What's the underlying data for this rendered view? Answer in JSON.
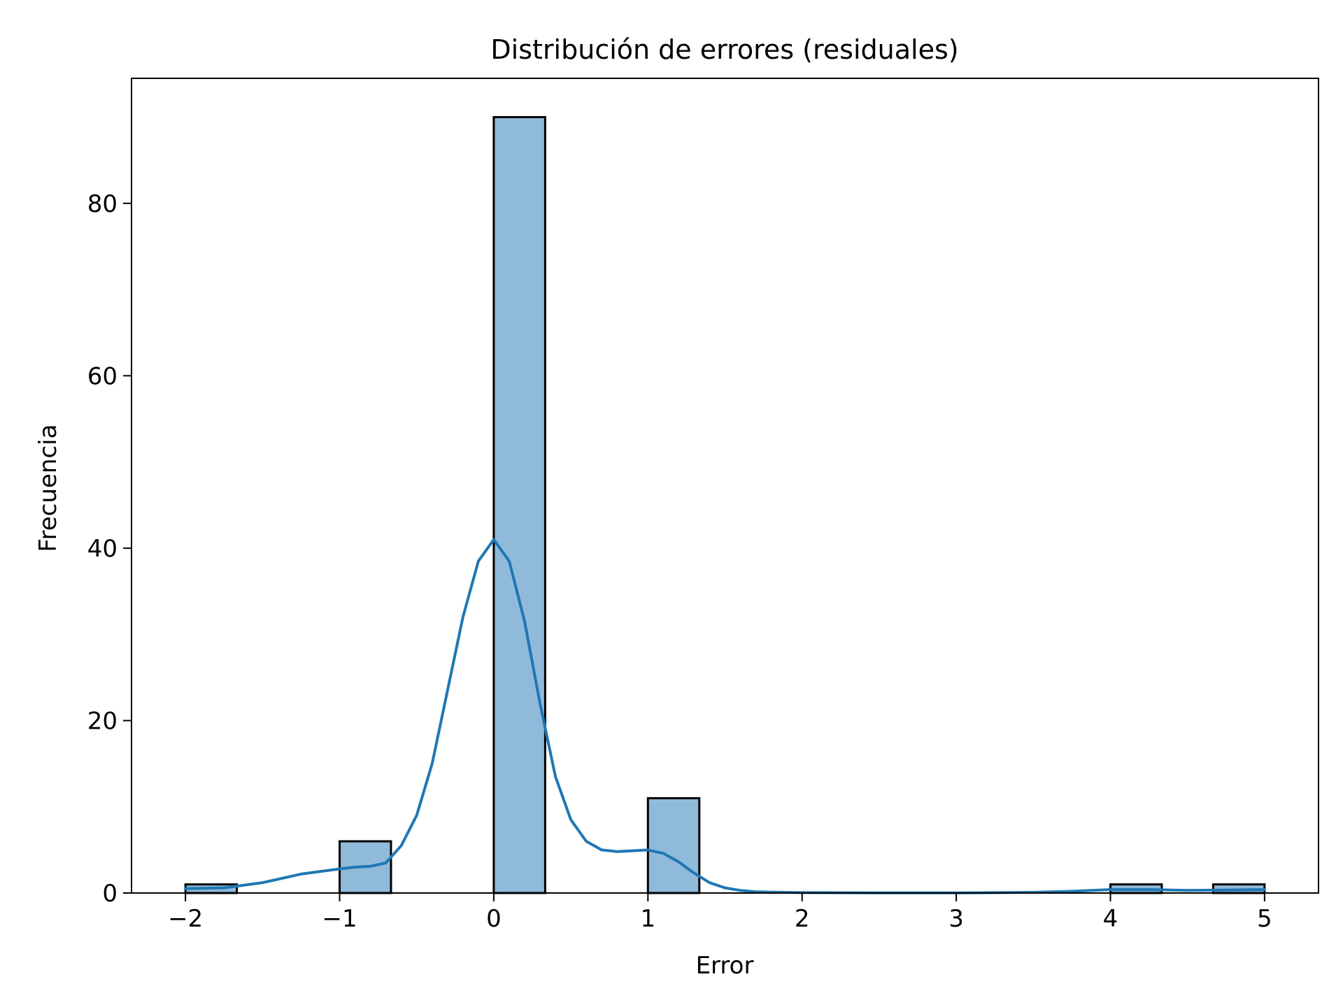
{
  "chart_data": {
    "type": "bar",
    "title": "Distribución de errores (residuales)",
    "xlabel": "Error",
    "ylabel": "Frecuencia",
    "xlim": [
      -2.35,
      5.35
    ],
    "ylim": [
      0,
      94.5
    ],
    "grid": false,
    "legend": "none",
    "x_ticks": [
      {
        "value": -2,
        "label": "−2"
      },
      {
        "value": -1,
        "label": "−1"
      },
      {
        "value": 0,
        "label": "0"
      },
      {
        "value": 1,
        "label": "1"
      },
      {
        "value": 2,
        "label": "2"
      },
      {
        "value": 3,
        "label": "3"
      },
      {
        "value": 4,
        "label": "4"
      },
      {
        "value": 5,
        "label": "5"
      }
    ],
    "y_ticks": [
      {
        "value": 0,
        "label": "0"
      },
      {
        "value": 20,
        "label": "20"
      },
      {
        "value": 40,
        "label": "40"
      },
      {
        "value": 60,
        "label": "60"
      },
      {
        "value": 80,
        "label": "80"
      }
    ],
    "bins": [
      {
        "x0": -2.0,
        "x1": -1.6667,
        "count": 1
      },
      {
        "x0": -1.0,
        "x1": -0.6667,
        "count": 6
      },
      {
        "x0": 0.0,
        "x1": 0.3333,
        "count": 90
      },
      {
        "x0": 1.0,
        "x1": 1.3333,
        "count": 11
      },
      {
        "x0": 4.0,
        "x1": 4.3333,
        "count": 1
      },
      {
        "x0": 4.6667,
        "x1": 5.0,
        "count": 1
      }
    ],
    "kde": {
      "x": [
        -2.0,
        -1.75,
        -1.5,
        -1.25,
        -1.0,
        -0.9,
        -0.8,
        -0.7,
        -0.6,
        -0.5,
        -0.4,
        -0.3,
        -0.2,
        -0.1,
        0.0,
        0.1,
        0.2,
        0.3,
        0.4,
        0.5,
        0.6,
        0.7,
        0.8,
        0.9,
        1.0,
        1.1,
        1.2,
        1.3,
        1.4,
        1.5,
        1.6,
        1.7,
        1.8,
        2.0,
        2.5,
        3.0,
        3.5,
        3.75,
        4.0,
        4.25,
        4.5,
        4.75,
        5.0
      ],
      "y": [
        0.5,
        0.6,
        1.2,
        2.2,
        2.8,
        3.0,
        3.1,
        3.5,
        5.5,
        9.0,
        15.0,
        23.5,
        32.0,
        38.5,
        41.0,
        38.5,
        31.5,
        22.0,
        13.5,
        8.5,
        6.0,
        5.0,
        4.8,
        4.9,
        5.0,
        4.6,
        3.6,
        2.3,
        1.2,
        0.6,
        0.3,
        0.15,
        0.1,
        0.05,
        0.02,
        0.02,
        0.08,
        0.2,
        0.4,
        0.4,
        0.3,
        0.35,
        0.4
      ]
    },
    "colors": {
      "bar_fill": "#90bada",
      "bar_edge": "#000000",
      "kde_line": "#1f77b4"
    }
  }
}
